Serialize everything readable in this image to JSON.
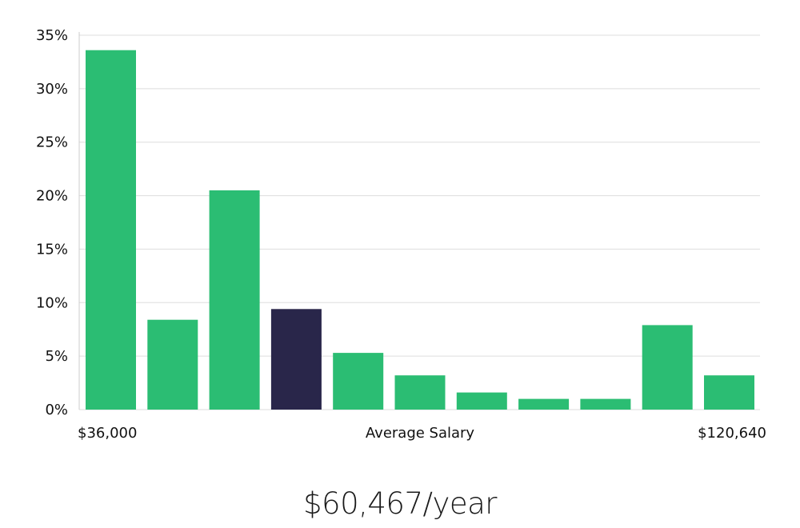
{
  "chart_data": {
    "type": "bar",
    "title": "",
    "xlabel": "Average Salary",
    "ylabel": "",
    "x_min_label": "$36,000",
    "x_max_label": "$120,640",
    "ylim": [
      0,
      35
    ],
    "yticks": [
      {
        "value": 0,
        "label": "0%"
      },
      {
        "value": 5,
        "label": "5%"
      },
      {
        "value": 10,
        "label": "10%"
      },
      {
        "value": 15,
        "label": "15%"
      },
      {
        "value": 20,
        "label": "20%"
      },
      {
        "value": 25,
        "label": "25%"
      },
      {
        "value": 30,
        "label": "30%"
      },
      {
        "value": 35,
        "label": "35%"
      }
    ],
    "grid": true,
    "values": [
      33.6,
      8.4,
      20.5,
      9.4,
      5.3,
      3.2,
      1.6,
      1.0,
      1.0,
      7.9,
      3.2
    ],
    "highlight_index": 3,
    "colors": {
      "bar": "#2bbd73",
      "highlight": "#29264a",
      "grid": "#dddddd",
      "axis": "#cccccc"
    }
  },
  "summary": {
    "salary_label": "$60,467/year"
  }
}
